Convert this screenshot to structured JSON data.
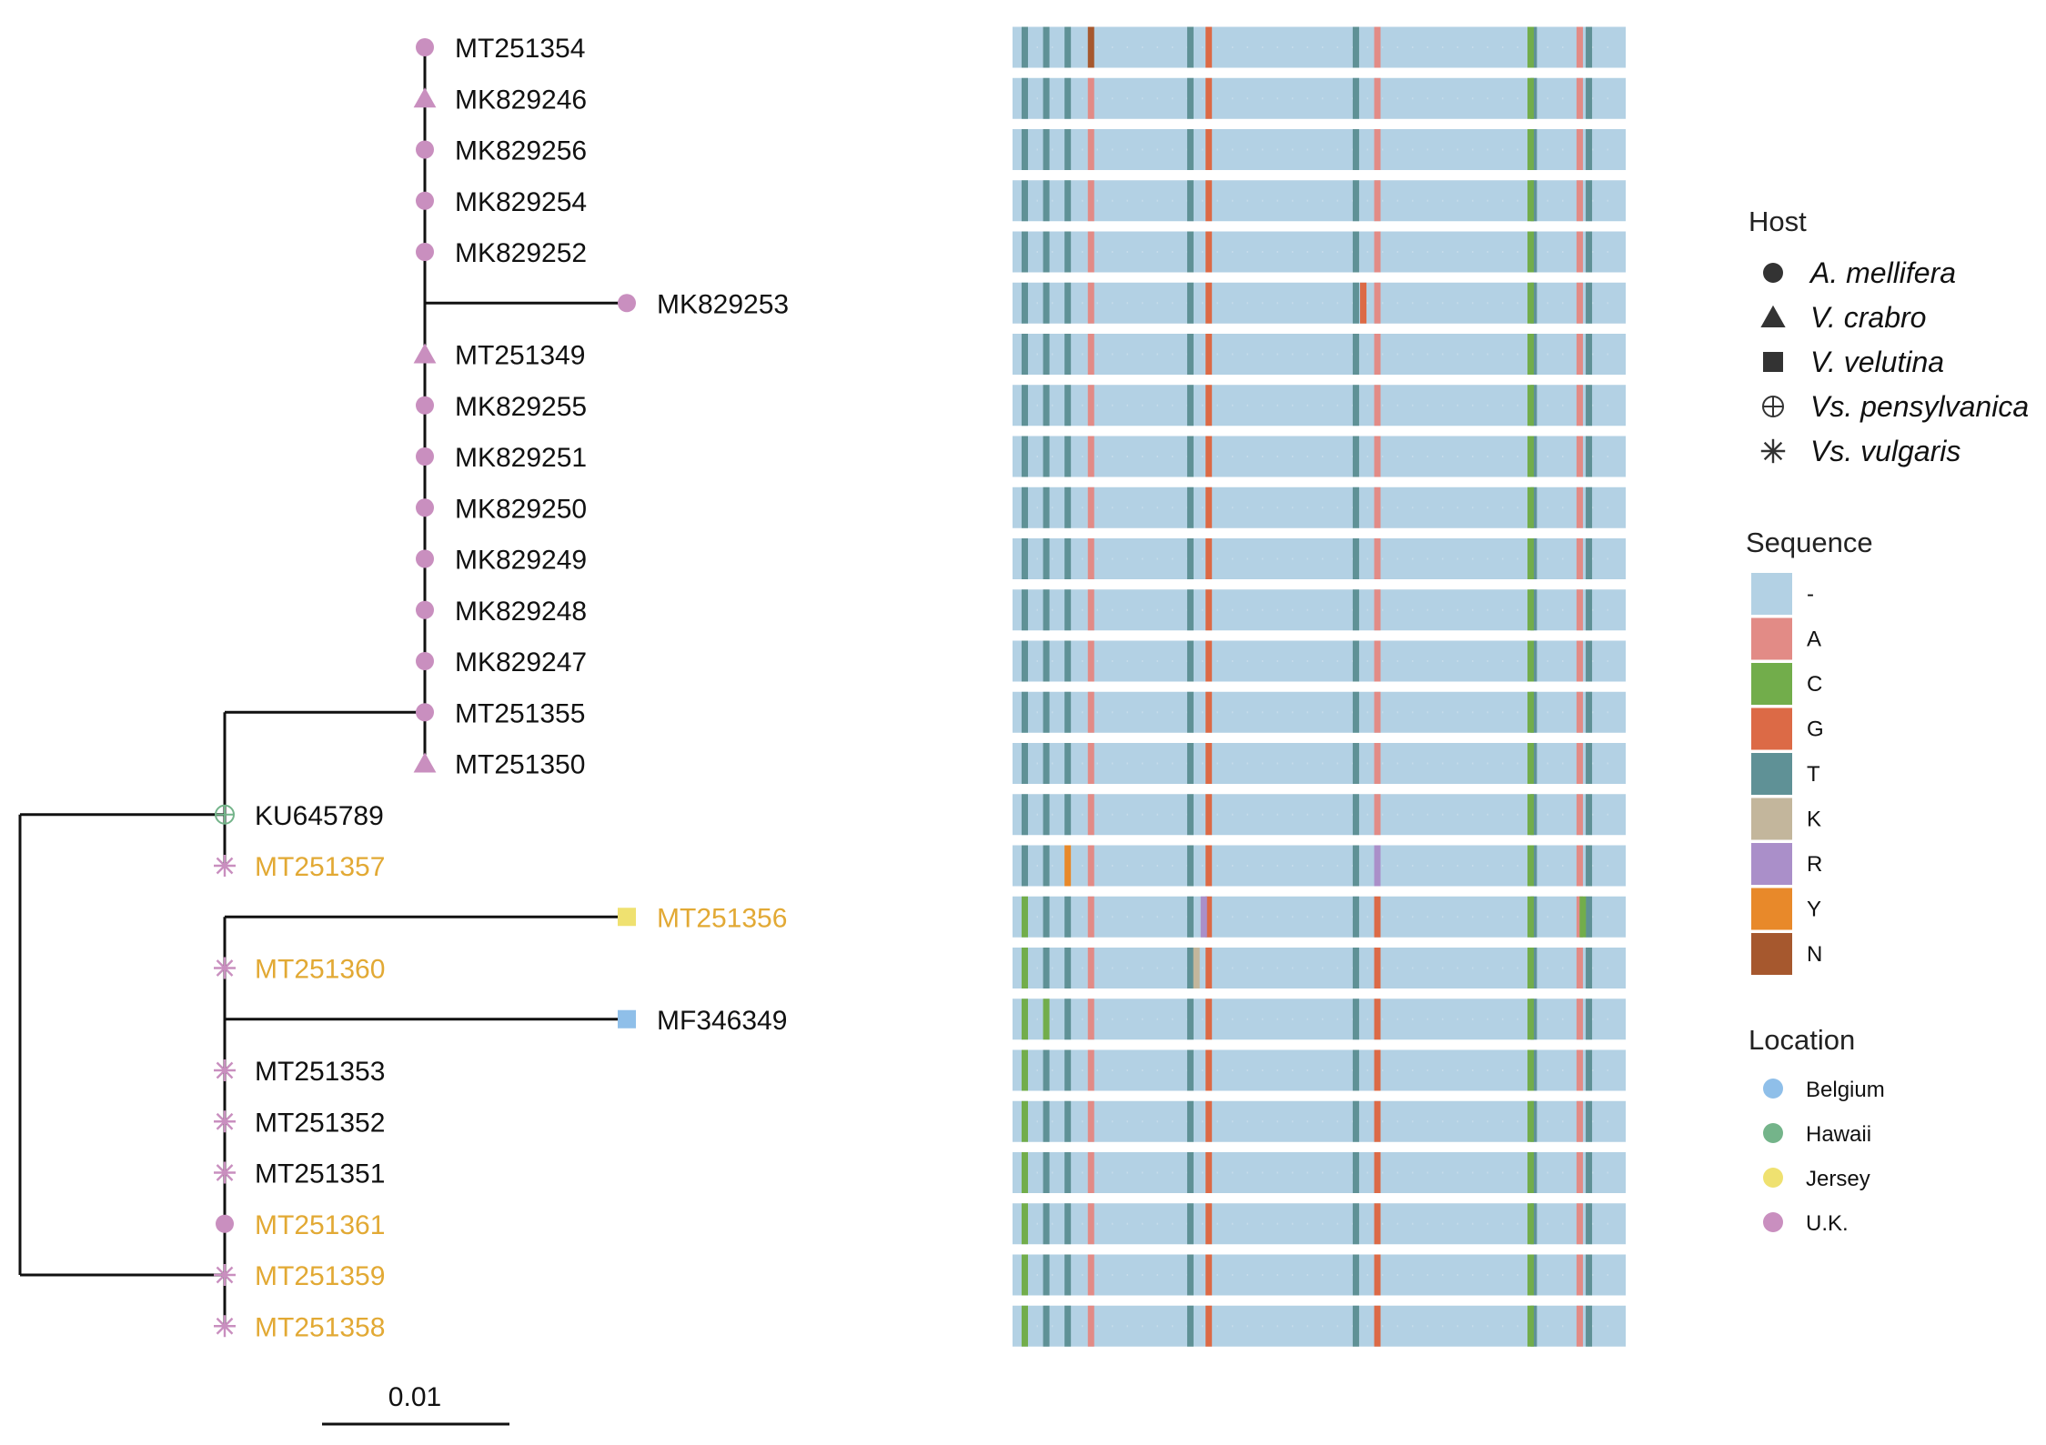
{
  "figure": {
    "taxa": [
      {
        "label": "MT251354",
        "host": "A. mellifera",
        "location": "U.K.",
        "highlight": false
      },
      {
        "label": "MK829246",
        "host": "V. crabro",
        "location": "U.K.",
        "highlight": false
      },
      {
        "label": "MK829256",
        "host": "A. mellifera",
        "location": "U.K.",
        "highlight": false
      },
      {
        "label": "MK829254",
        "host": "A. mellifera",
        "location": "U.K.",
        "highlight": false
      },
      {
        "label": "MK829252",
        "host": "A. mellifera",
        "location": "U.K.",
        "highlight": false
      },
      {
        "label": "MK829253",
        "host": "A. mellifera",
        "location": "U.K.",
        "highlight": false
      },
      {
        "label": "MT251349",
        "host": "V. crabro",
        "location": "U.K.",
        "highlight": false
      },
      {
        "label": "MK829255",
        "host": "A. mellifera",
        "location": "U.K.",
        "highlight": false
      },
      {
        "label": "MK829251",
        "host": "A. mellifera",
        "location": "U.K.",
        "highlight": false
      },
      {
        "label": "MK829250",
        "host": "A. mellifera",
        "location": "U.K.",
        "highlight": false
      },
      {
        "label": "MK829249",
        "host": "A. mellifera",
        "location": "U.K.",
        "highlight": false
      },
      {
        "label": "MK829248",
        "host": "A. mellifera",
        "location": "U.K.",
        "highlight": false
      },
      {
        "label": "MK829247",
        "host": "A. mellifera",
        "location": "U.K.",
        "highlight": false
      },
      {
        "label": "MT251355",
        "host": "A. mellifera",
        "location": "U.K.",
        "highlight": false
      },
      {
        "label": "MT251350",
        "host": "V. crabro",
        "location": "U.K.",
        "highlight": false
      },
      {
        "label": "KU645789",
        "host": "Vs. pensylvanica",
        "location": "Hawaii",
        "highlight": false
      },
      {
        "label": "MT251357",
        "host": "Vs. vulgaris",
        "location": "U.K.",
        "highlight": true
      },
      {
        "label": "MT251356",
        "host": "V. velutina",
        "location": "Jersey",
        "highlight": true
      },
      {
        "label": "MT251360",
        "host": "Vs. vulgaris",
        "location": "U.K.",
        "highlight": true
      },
      {
        "label": "MF346349",
        "host": "V. velutina",
        "location": "Belgium",
        "highlight": false
      },
      {
        "label": "MT251353",
        "host": "Vs. vulgaris",
        "location": "U.K.",
        "highlight": false
      },
      {
        "label": "MT251352",
        "host": "Vs. vulgaris",
        "location": "U.K.",
        "highlight": false
      },
      {
        "label": "MT251351",
        "host": "Vs. vulgaris",
        "location": "U.K.",
        "highlight": false
      },
      {
        "label": "MT251361",
        "host": "A. mellifera",
        "location": "U.K.",
        "highlight": true
      },
      {
        "label": "MT251359",
        "host": "Vs. vulgaris",
        "location": "U.K.",
        "highlight": true
      },
      {
        "label": "MT251358",
        "host": "Vs. vulgaris",
        "location": "U.K.",
        "highlight": true
      }
    ],
    "scale_bar_label": "0.01",
    "alignment": {
      "consensus": {
        "fraction": 0.9,
        "symbol": "-"
      },
      "base_columns": [
        0.02,
        0.055,
        0.09,
        0.29,
        0.56,
        0.85
      ],
      "group_columns": {
        "top": {
          "0.128": "A",
          "0.32": "G",
          "0.595": "A",
          "0.845": "C",
          "0.925": "A",
          "0.94": "T"
        },
        "bottom": {
          "0.02": "C",
          "0.128": "A",
          "0.32": "G",
          "0.595": "G",
          "0.845": "C",
          "0.925": "A",
          "0.94": "T"
        }
      },
      "overrides": [
        {
          "row": 0,
          "pos": 0.128,
          "base": "N"
        },
        {
          "row": 5,
          "pos": 0.572,
          "base": "G"
        },
        {
          "row": 16,
          "pos": 0.09,
          "base": "Y"
        },
        {
          "row": 16,
          "pos": 0.595,
          "base": "R"
        },
        {
          "row": 17,
          "pos": 0.312,
          "base": "R"
        },
        {
          "row": 17,
          "pos": 0.93,
          "base": "C"
        },
        {
          "row": 18,
          "pos": 0.3,
          "base": "K"
        },
        {
          "row": 19,
          "pos": 0.055,
          "base": "C"
        }
      ]
    }
  },
  "legends": {
    "host": {
      "title": "Host",
      "items": [
        {
          "shape": "circle",
          "label": "A. mellifera"
        },
        {
          "shape": "triangle",
          "label": "V. crabro"
        },
        {
          "shape": "square",
          "label": "V. velutina"
        },
        {
          "shape": "circled-plus",
          "label": "Vs. pensylvanica"
        },
        {
          "shape": "asterisk",
          "label": "Vs. vulgaris"
        }
      ]
    },
    "sequence": {
      "title": "Sequence",
      "items": [
        {
          "symbol": "-",
          "color": "#b3d1e4"
        },
        {
          "symbol": "A",
          "color": "#e28b86"
        },
        {
          "symbol": "C",
          "color": "#72ad4b"
        },
        {
          "symbol": "G",
          "color": "#dc6a46"
        },
        {
          "symbol": "T",
          "color": "#5f9196"
        },
        {
          "symbol": "K",
          "color": "#c3b69c"
        },
        {
          "symbol": "R",
          "color": "#aa8fc9"
        },
        {
          "symbol": "Y",
          "color": "#e8892a"
        },
        {
          "symbol": "N",
          "color": "#a6582e"
        }
      ]
    },
    "location": {
      "title": "Location",
      "items": [
        {
          "name": "Belgium",
          "color": "#8fbfe9"
        },
        {
          "name": "Hawaii",
          "color": "#74b48a"
        },
        {
          "name": "Jersey",
          "color": "#efe170"
        },
        {
          "name": "U.K.",
          "color": "#c98fbf"
        }
      ]
    }
  },
  "colors": {
    "highlight_label": "#e2a934",
    "normal_label": "#111111",
    "branch": "#111111"
  }
}
